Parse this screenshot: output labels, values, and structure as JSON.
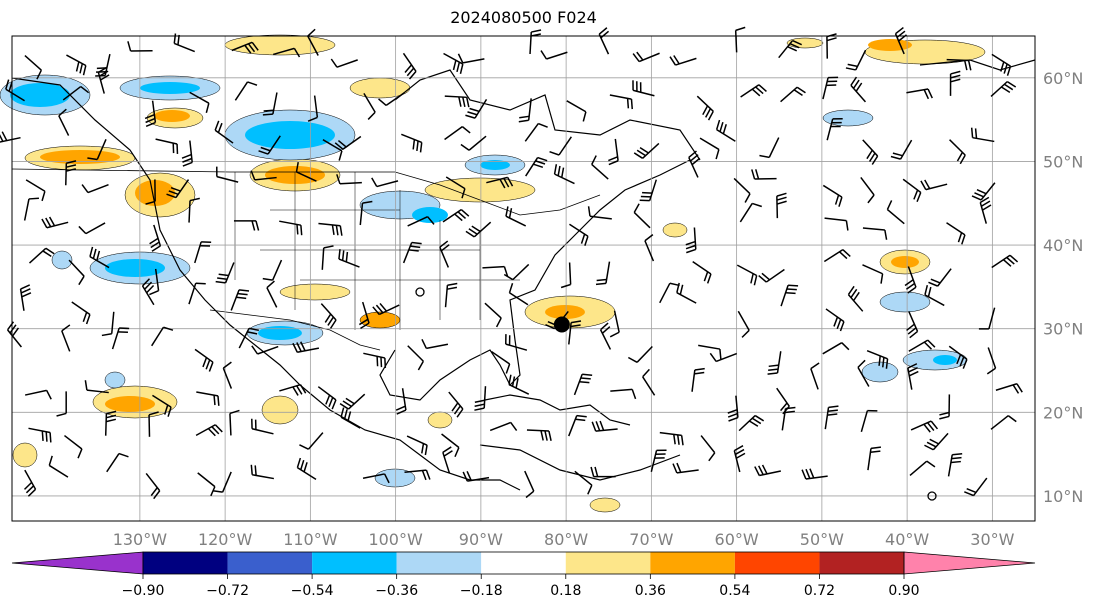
{
  "title": "2024080500 F024",
  "map": {
    "lat_labels": [
      "60°N",
      "50°N",
      "40°N",
      "30°N",
      "20°N",
      "10°N"
    ],
    "lon_labels": [
      "130°W",
      "120°W",
      "110°W",
      "100°W",
      "90°W",
      "80°W",
      "70°W",
      "60°W",
      "50°W",
      "40°W",
      "30°W"
    ],
    "lat_values": [
      60,
      50,
      40,
      30,
      20,
      10
    ],
    "lon_values": [
      -130,
      -120,
      -110,
      -100,
      -90,
      -80,
      -70,
      -60,
      -50,
      -40,
      -30
    ],
    "lon_range": [
      -145,
      -25
    ],
    "lat_range": [
      7,
      65
    ],
    "grid": true,
    "marker": {
      "lon": -80.5,
      "lat": 30.5
    }
  },
  "colorbar": {
    "ticks": [
      "−0.90",
      "−0.72",
      "−0.54",
      "−0.36",
      "−0.18",
      "0.18",
      "0.36",
      "0.54",
      "0.72",
      "0.90"
    ],
    "colors": [
      "#9932cc",
      "#000080",
      "#3a5fcd",
      "#00bfff",
      "#add8f6",
      "#ffffff",
      "#fde68a",
      "#ffa500",
      "#ff4500",
      "#b22222",
      "#ff82ab"
    ],
    "extend": "both"
  }
}
